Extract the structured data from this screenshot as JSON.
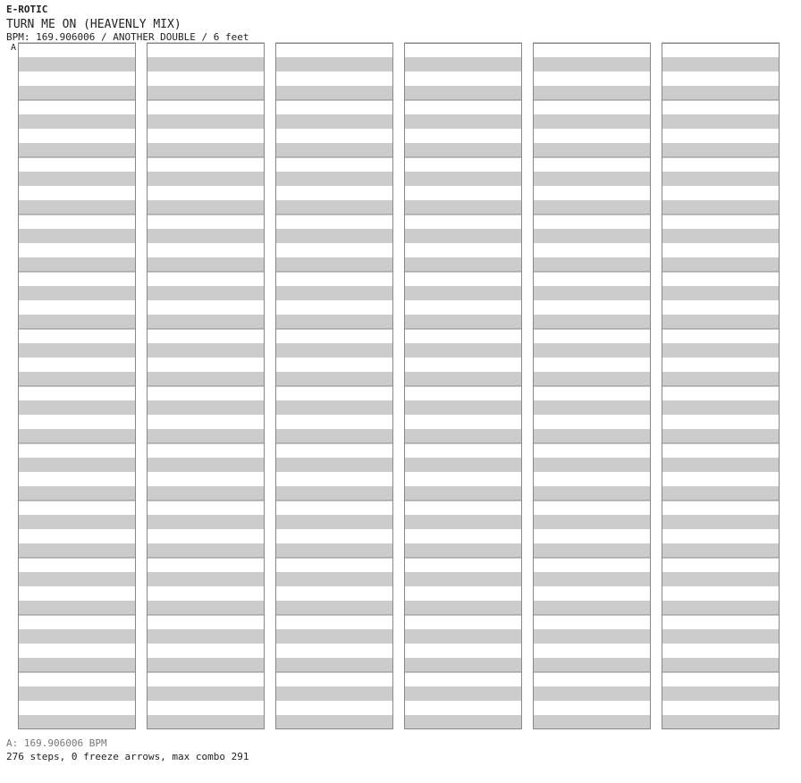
{
  "header": {
    "artist": "E-ROTIC",
    "title": "TURN ME ON (HEAVENLY MIX)",
    "meta": "BPM: 169.906006 / ANOTHER DOUBLE / 6 feet"
  },
  "bpm_marker": "A",
  "footer": {
    "bpm_list": "A: 169.906006 BPM",
    "stats": "276 steps, 0 freeze arrows, max combo 291"
  },
  "colors": {
    "stripe": "#cccccc",
    "border": "#888888",
    "arrow_red_fill": "#ffc8c8",
    "arrow_red_stroke": "#dd4444",
    "arrow_blue_fill": "#9cc8f0",
    "arrow_blue_stroke": "#3a78c8"
  },
  "chart_data": {
    "type": "step_chart",
    "lanes_order": [
      "L1",
      "D1",
      "U1",
      "R1",
      "L2",
      "D2",
      "U2",
      "R2"
    ],
    "columns": 6,
    "measures_per_column": 12,
    "rows_per_measure": 8,
    "arrows_by_column": [
      [],
      [],
      [],
      [],
      [],
      []
    ]
  }
}
